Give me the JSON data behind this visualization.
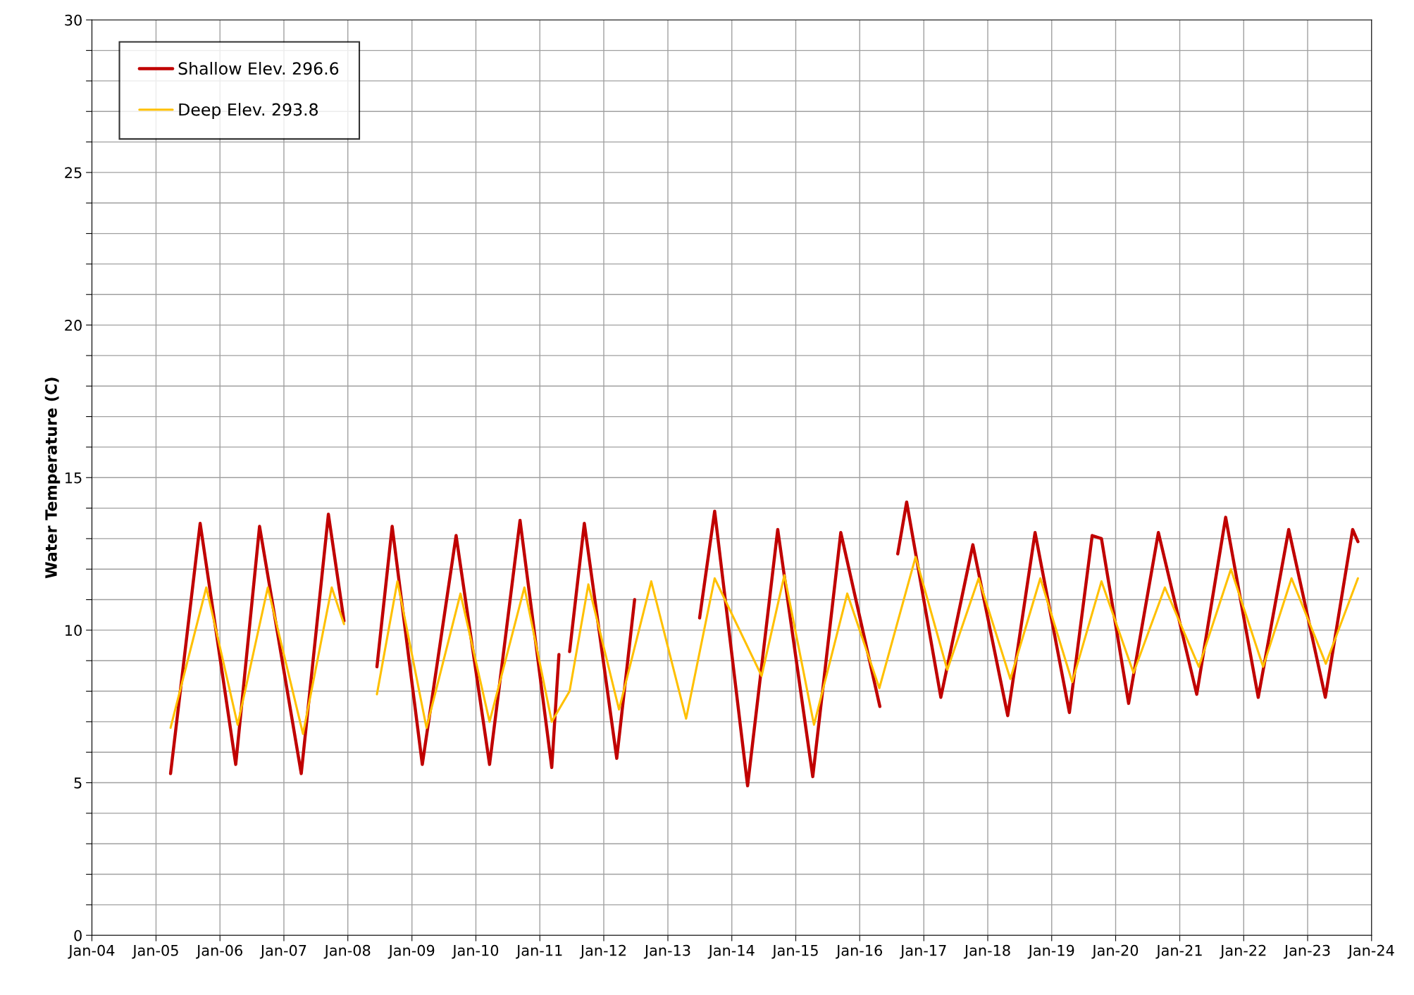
{
  "chart_data": {
    "type": "line",
    "ylabel": "Water Temperature (C)",
    "xlim": [
      "2004-01-01",
      "2024-01-01"
    ],
    "xticks": [
      {
        "value": "2004-01-01",
        "label": "Jan-04"
      },
      {
        "value": "2005-01-01",
        "label": "Jan-05"
      },
      {
        "value": "2006-01-01",
        "label": "Jan-06"
      },
      {
        "value": "2007-01-01",
        "label": "Jan-07"
      },
      {
        "value": "2008-01-01",
        "label": "Jan-08"
      },
      {
        "value": "2009-01-01",
        "label": "Jan-09"
      },
      {
        "value": "2010-01-01",
        "label": "Jan-10"
      },
      {
        "value": "2011-01-01",
        "label": "Jan-11"
      },
      {
        "value": "2012-01-01",
        "label": "Jan-12"
      },
      {
        "value": "2013-01-01",
        "label": "Jan-13"
      },
      {
        "value": "2014-01-01",
        "label": "Jan-14"
      },
      {
        "value": "2015-01-01",
        "label": "Jan-15"
      },
      {
        "value": "2016-01-01",
        "label": "Jan-16"
      },
      {
        "value": "2017-01-01",
        "label": "Jan-17"
      },
      {
        "value": "2018-01-01",
        "label": "Jan-18"
      },
      {
        "value": "2019-01-01",
        "label": "Jan-19"
      },
      {
        "value": "2020-01-01",
        "label": "Jan-20"
      },
      {
        "value": "2021-01-01",
        "label": "Jan-21"
      },
      {
        "value": "2022-01-01",
        "label": "Jan-22"
      },
      {
        "value": "2023-01-01",
        "label": "Jan-23"
      },
      {
        "value": "2024-01-01",
        "label": "Jan-24"
      }
    ],
    "ylim": [
      0,
      30
    ],
    "yticks": [
      0,
      {
        "value": 1,
        "label": null
      },
      {
        "value": 2,
        "label": null
      },
      {
        "value": 3,
        "label": null
      },
      {
        "value": 4,
        "label": null
      },
      5,
      {
        "value": 6,
        "label": null
      },
      {
        "value": 7,
        "label": null
      },
      {
        "value": 8,
        "label": null
      },
      {
        "value": 9,
        "label": null
      },
      10,
      {
        "value": 11,
        "label": null
      },
      {
        "value": 12,
        "label": null
      },
      {
        "value": 13,
        "label": null
      },
      {
        "value": 14,
        "label": null
      },
      15,
      {
        "value": 16,
        "label": null
      },
      {
        "value": 17,
        "label": null
      },
      {
        "value": 18,
        "label": null
      },
      {
        "value": 19,
        "label": null
      },
      20,
      {
        "value": 21,
        "label": null
      },
      {
        "value": 22,
        "label": null
      },
      {
        "value": 23,
        "label": null
      },
      {
        "value": 24,
        "label": null
      },
      25,
      {
        "value": 26,
        "label": null
      },
      {
        "value": 27,
        "label": null
      },
      {
        "value": 28,
        "label": null
      },
      {
        "value": 29,
        "label": null
      },
      30
    ],
    "grid": true,
    "legend": "top left",
    "marker": "none",
    "line_style": "solid",
    "series": [
      {
        "name": "Shallow Elev. 296.6",
        "color": "#c00000",
        "x": [
          "2005-03-25",
          "2005-09-10",
          "2006-04-01",
          "2006-08-15",
          "2007-04-10",
          "2007-09-12",
          "2007-12-10",
          "2008-03-01",
          "2008-06-15",
          "2008-09-10",
          "2009-03-01",
          "2009-09-10",
          "2010-03-20",
          "2010-09-10",
          "2011-03-10",
          "2011-04-20",
          "2011-05-10",
          "2011-06-20",
          "2011-09-12",
          "2012-03-15",
          "2012-06-25",
          "2013-01-01",
          "2013-07-01",
          "2013-09-25",
          "2014-04-01",
          "2014-09-20",
          "2015-04-08",
          "2015-09-15",
          "2016-04-25",
          "2016-06-15",
          "2016-08-05",
          "2016-09-25",
          "2017-04-08",
          "2017-10-08",
          "2018-04-25",
          "2018-09-28",
          "2019-04-12",
          "2019-08-20",
          "2019-10-12",
          "2020-03-15",
          "2020-09-01",
          "2021-04-08",
          "2021-09-20",
          "2022-03-25",
          "2022-09-15",
          "2023-04-12",
          "2023-09-15",
          "2023-10-15"
        ],
        "values": [
          5.3,
          13.5,
          5.6,
          13.4,
          5.3,
          13.8,
          10.3,
          null,
          8.8,
          13.4,
          5.6,
          13.1,
          5.6,
          13.6,
          5.5,
          9.2,
          null,
          9.3,
          13.5,
          5.8,
          11.0,
          null,
          10.4,
          13.9,
          4.9,
          13.3,
          5.2,
          13.2,
          7.5,
          null,
          12.5,
          14.2,
          7.8,
          12.8,
          7.2,
          13.2,
          7.3,
          13.1,
          13.0,
          7.6,
          13.2,
          7.9,
          13.7,
          7.8,
          13.3,
          7.8,
          13.3,
          12.9
        ]
      },
      {
        "name": "Deep Elev. 293.8",
        "color": "#ffc000",
        "x": [
          "2005-03-25",
          "2005-10-15",
          "2006-04-12",
          "2006-10-01",
          "2007-04-20",
          "2007-10-01",
          "2007-12-10",
          "2008-03-01",
          "2008-06-15",
          "2008-10-10",
          "2009-03-25",
          "2009-10-05",
          "2010-03-20",
          "2010-10-05",
          "2011-03-10",
          "2011-06-20",
          "2011-10-05",
          "2012-03-28",
          "2012-09-28",
          "2013-04-15",
          "2013-09-25",
          "2014-06-20",
          "2014-10-28",
          "2015-04-15",
          "2015-10-22",
          "2016-04-22",
          "2016-11-15",
          "2017-05-15",
          "2017-11-10",
          "2018-05-10",
          "2018-10-28",
          "2019-04-28",
          "2019-10-12",
          "2020-04-12",
          "2020-10-08",
          "2021-04-20",
          "2021-10-20",
          "2022-04-22",
          "2022-10-01",
          "2023-04-15",
          "2023-10-15"
        ],
        "values": [
          6.8,
          11.4,
          6.9,
          11.4,
          6.6,
          11.4,
          10.2,
          null,
          7.9,
          11.6,
          6.8,
          11.2,
          7.0,
          11.4,
          7.0,
          8.0,
          11.5,
          7.4,
          11.6,
          7.1,
          11.7,
          8.5,
          11.8,
          6.9,
          11.2,
          8.1,
          12.4,
          8.7,
          11.7,
          8.4,
          11.7,
          8.3,
          11.6,
          8.6,
          11.4,
          8.8,
          12.0,
          8.8,
          11.7,
          8.9,
          11.7
        ]
      }
    ]
  }
}
